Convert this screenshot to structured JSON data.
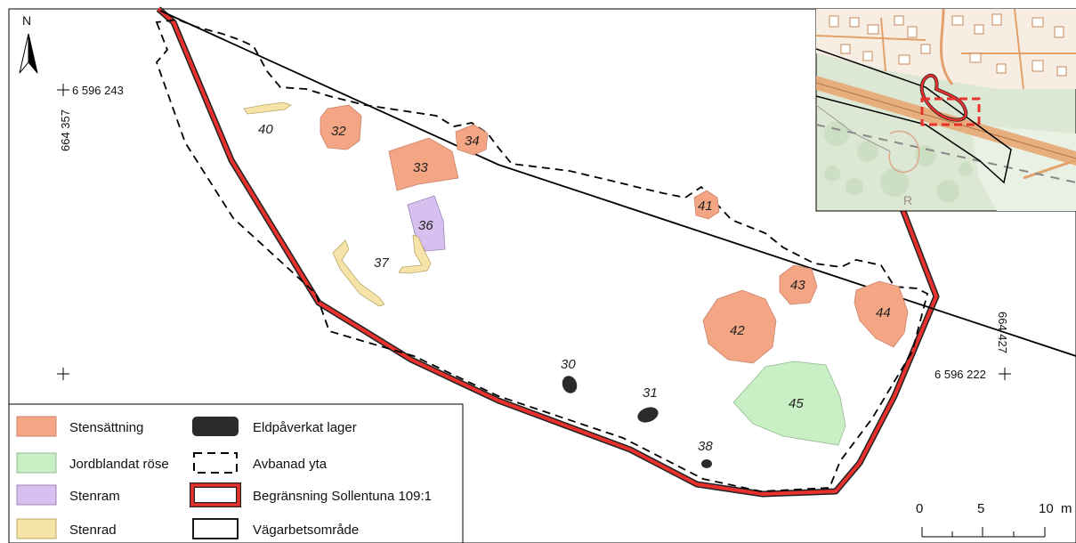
{
  "map": {
    "north_letter": "N",
    "coords": {
      "top_left_n": "6 596 243",
      "top_left_e": "664 357",
      "bottom_right_n": "6 596 222",
      "bottom_right_e": "664 427"
    },
    "features": [
      {
        "id": "40",
        "type": "Stenrad"
      },
      {
        "id": "32",
        "type": "Stensättning"
      },
      {
        "id": "34",
        "type": "Stensättning"
      },
      {
        "id": "33",
        "type": "Stensättning"
      },
      {
        "id": "36",
        "type": "Stenram"
      },
      {
        "id": "37",
        "type": "Stenrad"
      },
      {
        "id": "41",
        "type": "Stensättning"
      },
      {
        "id": "43",
        "type": "Stensättning"
      },
      {
        "id": "44",
        "type": "Stensättning"
      },
      {
        "id": "42",
        "type": "Stensättning"
      },
      {
        "id": "45",
        "type": "Jordblandat röse"
      },
      {
        "id": "30",
        "type": "Eldpåverkat lager"
      },
      {
        "id": "31",
        "type": "Eldpåverkat lager"
      },
      {
        "id": "38",
        "type": "Eldpåverkat lager"
      }
    ]
  },
  "legend": {
    "items": [
      {
        "label": "Stensättning",
        "color": "#f4a583"
      },
      {
        "label": "Jordblandat röse",
        "color": "#c9efc5"
      },
      {
        "label": "Stenram",
        "color": "#d7c0f0"
      },
      {
        "label": "Stenrad",
        "color": "#f5e3a8"
      },
      {
        "label": "Eldpåverkat lager",
        "color": "#2b2b2b"
      },
      {
        "label": "Avbanad yta",
        "color": "#000000"
      },
      {
        "label": "Begränsning Sollentuna 109:1",
        "color": "#e8312d"
      },
      {
        "label": "Vägarbetsområde",
        "color": "#000000"
      }
    ]
  },
  "scale": {
    "labels": [
      "0",
      "5",
      "10"
    ],
    "unit": "m"
  },
  "colors": {
    "stensattning": "#f4a583",
    "jordblandat": "#c9efc5",
    "stenram": "#d7c0f0",
    "stenrad": "#f5e3a8",
    "eld": "#2b2b2b",
    "boundary_red": "#e8312d"
  }
}
